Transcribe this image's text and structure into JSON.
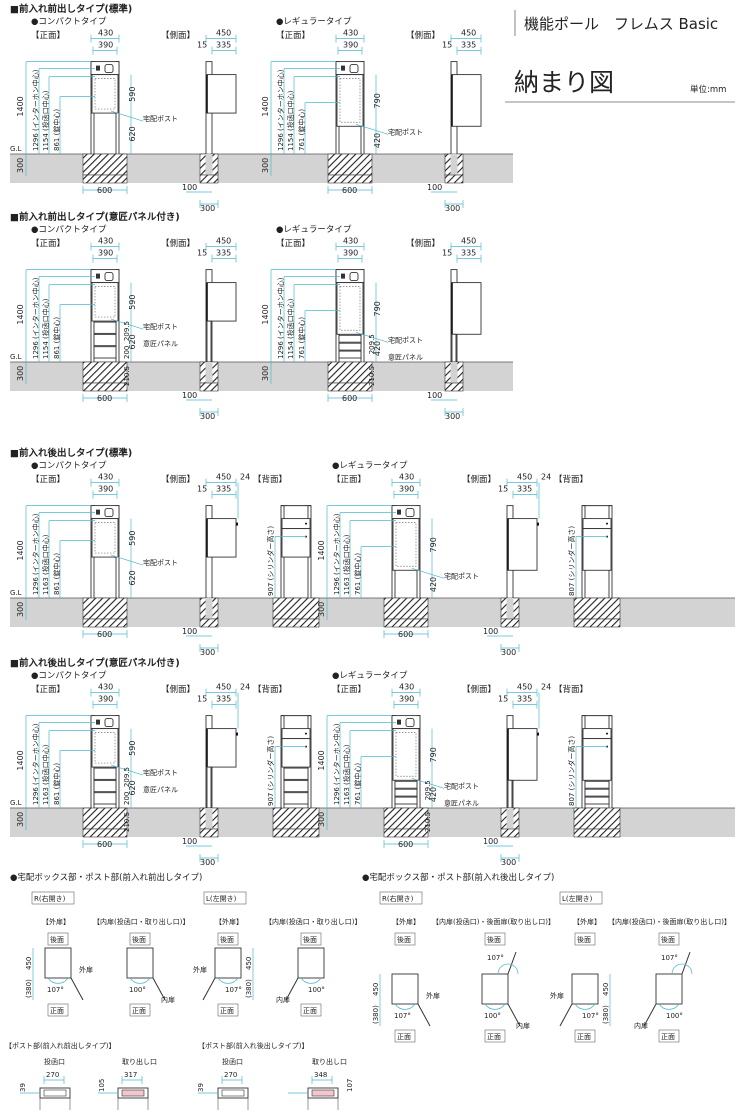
{
  "header": {
    "product": "機能ポール　フレムス Basic",
    "title": "納まり図",
    "unit": "単位:mm"
  },
  "common": {
    "front": "【正面】",
    "side": "【側面】",
    "back": "【背面】",
    "gl": "G.L",
    "compact": "●コンパクトタイプ",
    "regular": "●レギュラータイプ",
    "post": "宅配ポスト",
    "panel": "意匠パネル",
    "w430": "430",
    "w390": "390",
    "h1400": "1400",
    "d300": "300",
    "f600": "600",
    "s450": "450",
    "s15": "15",
    "s335": "335",
    "s24": "24",
    "s100": "100",
    "s300": "300"
  },
  "sections": [
    {
      "title": "■前入れ前出しタイプ(標準)",
      "back": false,
      "panel": false,
      "panels": [
        {
          "type": "compact",
          "h1": "1296 (インターホン中心)",
          "h2": "1154 (投函口中心)",
          "h3": "861 (錠中心)",
          "post": "590",
          "leg": "620"
        },
        {
          "type": "regular",
          "h1": "1296 (インターホン中心)",
          "h2": "1154 (投函口中心)",
          "h3": "761 (錠中心)",
          "post": "790",
          "leg": "420"
        }
      ]
    },
    {
      "title": "■前入れ前出しタイプ(意匠パネル付き)",
      "back": false,
      "panel": true,
      "panels": [
        {
          "type": "compact",
          "h1": "1296 (インターホン中心)",
          "h2": "1154 (投函口中心)",
          "h3": "861 (錠中心)",
          "post": "590",
          "leg": "620",
          "p1": "209.5",
          "p2": "200",
          "p3": "210.5"
        },
        {
          "type": "regular",
          "h1": "1296 (インターホン中心)",
          "h2": "1154 (投函口中心)",
          "h3": "761 (錠中心)",
          "post": "790",
          "leg": "420",
          "p1": "209.5",
          "p3": "210.5"
        }
      ]
    },
    {
      "title": "■前入れ後出しタイプ(標準)",
      "back": true,
      "panel": false,
      "panels": [
        {
          "type": "compact",
          "h1": "1296 (インターホン中心)",
          "h2": "1163 (投函口中心)",
          "h3": "861 (錠中心)",
          "post": "590",
          "leg": "620",
          "cyl": "907 (シリンダー高さ)"
        },
        {
          "type": "regular",
          "h1": "1296 (インターホン中心)",
          "h2": "1163 (投函口中心)",
          "h3": "761 (錠中心)",
          "post": "790",
          "leg": "420",
          "cyl": "807 (シリンダー高さ)"
        }
      ]
    },
    {
      "title": "■前入れ後出しタイプ(意匠パネル付き)",
      "back": true,
      "panel": true,
      "panels": [
        {
          "type": "compact",
          "h1": "1296 (インターホン中心)",
          "h2": "1163 (投函口中心)",
          "h3": "861 (錠中心)",
          "post": "590",
          "leg": "620",
          "p1": "209.5",
          "p2": "200",
          "p3": "210.5",
          "cyl": "907 (シリンダー高さ)"
        },
        {
          "type": "regular",
          "h1": "1296 (インターホン中心)",
          "h2": "1163 (投函口中心)",
          "h3": "761 (錠中心)",
          "post": "790",
          "leg": "420",
          "p1": "209.5",
          "p3": "210.5",
          "cyl": "807 (シリンダー高さ)"
        }
      ]
    }
  ],
  "doors": {
    "front_title": "●宅配ボックス部・ポスト部(前入れ前出しタイプ)",
    "back_title": "●宅配ボックス部・ポスト部(前入れ後出しタイプ)",
    "r": "R(右開き)",
    "l": "L(左開き)",
    "outer": "【外扉】",
    "inner_front": "【内扉(投函口・取り出し口)】",
    "inner_back": "【内扉(投函口)・後面扉(取り出し口)】",
    "rear": "後面",
    "front": "正面",
    "outer_door": "外扉",
    "inner_door": "内扉",
    "a107": "107°",
    "a100": "100°",
    "d450": "450",
    "d380": "(380)"
  },
  "post_parts": {
    "front_title": "【ポスト部(前入れ前出しタイプ)】",
    "back_title": "【ポスト部(前入れ後出しタイプ)】",
    "slot": "投函口",
    "outlet": "取り出し口",
    "front_slot_w": "270",
    "front_slot_h": "39",
    "front_out_w": "317",
    "front_out_h": "105",
    "back_slot_w": "270",
    "back_slot_h": "39",
    "back_out_w": "348",
    "back_out_h": "107"
  },
  "colors": {
    "dimension": "#4ab8d0",
    "ground": "#d3d3d3",
    "outlet": "#f4c6cf"
  }
}
